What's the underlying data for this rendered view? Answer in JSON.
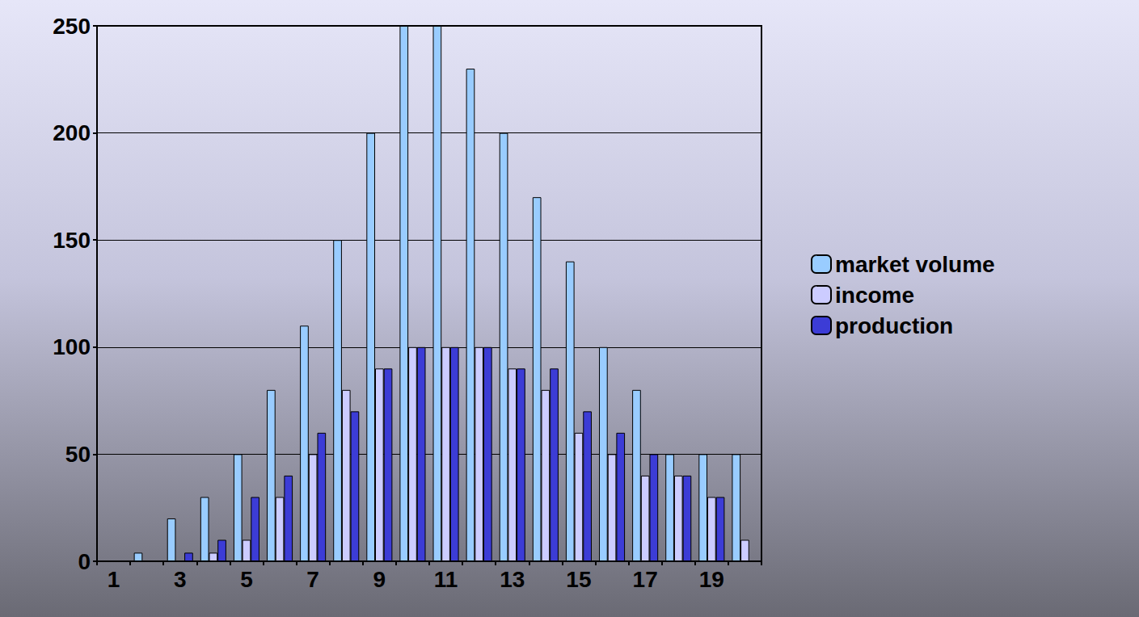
{
  "chart_data": {
    "type": "bar",
    "categories": [
      "1",
      null,
      "3",
      null,
      "5",
      null,
      "7",
      null,
      "9",
      null,
      "11",
      null,
      "13",
      null,
      "15",
      null,
      "17",
      null,
      "19",
      null
    ],
    "series": [
      {
        "name": "market volume",
        "color": "#99ccff",
        "values": [
          0,
          4,
          20,
          30,
          50,
          80,
          110,
          150,
          200,
          250,
          250,
          230,
          200,
          170,
          140,
          100,
          80,
          50,
          50,
          50
        ]
      },
      {
        "name": "income",
        "color": "#ccccff",
        "values": [
          0,
          0,
          0,
          4,
          10,
          30,
          50,
          80,
          90,
          100,
          100,
          100,
          90,
          80,
          60,
          50,
          40,
          40,
          30,
          10
        ]
      },
      {
        "name": "production",
        "color": "#3c3cd6",
        "values": [
          0,
          0,
          4,
          10,
          30,
          40,
          60,
          70,
          90,
          100,
          100,
          100,
          90,
          90,
          70,
          60,
          50,
          40,
          30,
          0
        ]
      }
    ],
    "ylim": [
      0,
      250
    ],
    "yticks": [
      0,
      50,
      100,
      150,
      200,
      250
    ],
    "grid": true,
    "legend": "right"
  }
}
